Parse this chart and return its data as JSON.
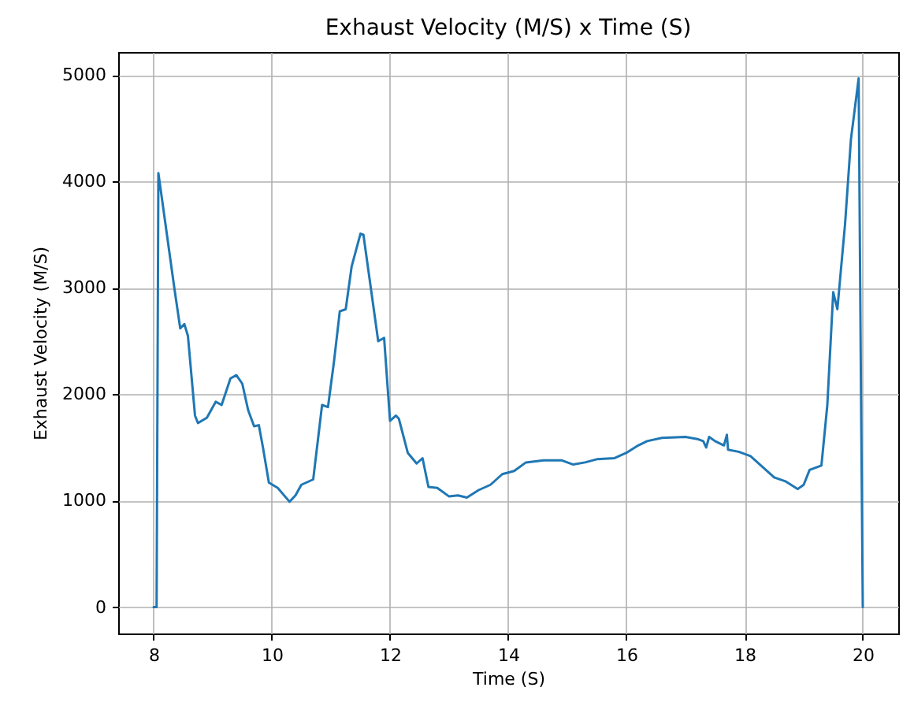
{
  "chart_data": {
    "type": "line",
    "title": "Exhaust Velocity (M/S) x Time (S)",
    "xlabel": "Time (S)",
    "ylabel": "Exhaust Velocity (M/S)",
    "xlim": [
      7.4,
      20.6
    ],
    "ylim": [
      -248,
      5218
    ],
    "xticks": [
      8,
      10,
      12,
      14,
      16,
      18,
      20
    ],
    "yticks": [
      0,
      1000,
      2000,
      3000,
      4000,
      5000
    ],
    "grid": true,
    "series": [
      {
        "color": "#1f77b4",
        "x": [
          8.0,
          8.05,
          8.08,
          8.2,
          8.35,
          8.45,
          8.52,
          8.58,
          8.7,
          8.75,
          8.9,
          9.05,
          9.15,
          9.3,
          9.4,
          9.5,
          9.6,
          9.7,
          9.78,
          9.85,
          9.95,
          10.1,
          10.3,
          10.4,
          10.5,
          10.7,
          10.85,
          10.95,
          11.05,
          11.15,
          11.25,
          11.35,
          11.5,
          11.55,
          11.7,
          11.8,
          11.9,
          12.0,
          12.1,
          12.15,
          12.3,
          12.45,
          12.55,
          12.65,
          12.8,
          13.0,
          13.15,
          13.3,
          13.5,
          13.7,
          13.9,
          14.1,
          14.3,
          14.6,
          14.9,
          15.1,
          15.3,
          15.5,
          15.8,
          16.0,
          16.2,
          16.35,
          16.6,
          17.0,
          17.2,
          17.3,
          17.35,
          17.4,
          17.5,
          17.65,
          17.7,
          17.72,
          17.9,
          18.1,
          18.3,
          18.5,
          18.7,
          18.9,
          19.0,
          19.1,
          19.3,
          19.4,
          19.5,
          19.57,
          19.7,
          19.8,
          19.93,
          19.97,
          20.0
        ],
        "values": [
          0,
          0,
          4080,
          3600,
          3000,
          2620,
          2660,
          2550,
          1800,
          1730,
          1780,
          1930,
          1900,
          2150,
          2180,
          2100,
          1850,
          1700,
          1710,
          1500,
          1170,
          1120,
          990,
          1050,
          1150,
          1200,
          1900,
          1880,
          2300,
          2780,
          2800,
          3200,
          3510,
          3500,
          2900,
          2500,
          2530,
          1750,
          1800,
          1770,
          1450,
          1350,
          1400,
          1130,
          1120,
          1040,
          1050,
          1030,
          1100,
          1150,
          1250,
          1280,
          1360,
          1380,
          1380,
          1340,
          1360,
          1390,
          1400,
          1450,
          1520,
          1560,
          1590,
          1600,
          1580,
          1560,
          1500,
          1600,
          1560,
          1520,
          1620,
          1480,
          1460,
          1420,
          1320,
          1220,
          1180,
          1110,
          1150,
          1290,
          1330,
          1900,
          2960,
          2800,
          3600,
          4400,
          4970,
          2000,
          0
        ]
      }
    ]
  }
}
